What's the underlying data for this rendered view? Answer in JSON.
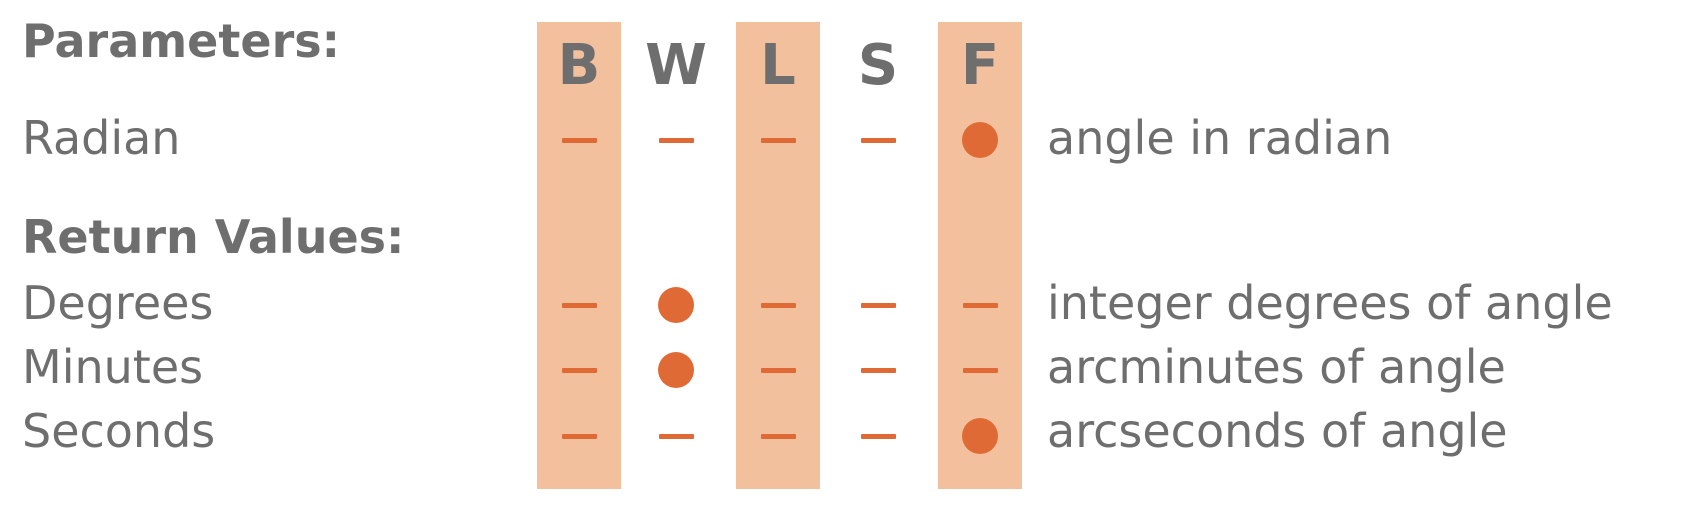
{
  "headings": {
    "parameters": "Parameters:",
    "return_values": "Return Values:"
  },
  "columns": [
    {
      "letter": "B",
      "highlighted": true
    },
    {
      "letter": "W",
      "highlighted": false
    },
    {
      "letter": "L",
      "highlighted": true
    },
    {
      "letter": "S",
      "highlighted": false
    },
    {
      "letter": "F",
      "highlighted": true
    }
  ],
  "rows": [
    {
      "label": "Radian",
      "marks": [
        "dash",
        "dash",
        "dash",
        "dash",
        "dot"
      ],
      "description": "angle in radian"
    },
    {
      "label": "Degrees",
      "marks": [
        "dash",
        "dot",
        "dash",
        "dash",
        "dash"
      ],
      "description": "integer degrees of angle"
    },
    {
      "label": "Minutes",
      "marks": [
        "dash",
        "dot",
        "dash",
        "dash",
        "dash"
      ],
      "description": "arcminutes of angle"
    },
    {
      "label": "Seconds",
      "marks": [
        "dash",
        "dash",
        "dash",
        "dash",
        "dot"
      ],
      "description": "arcseconds of angle"
    }
  ],
  "colors": {
    "column_highlight": "#f2c09d",
    "mark": "#e06a35",
    "text": "#6e6e6e"
  }
}
